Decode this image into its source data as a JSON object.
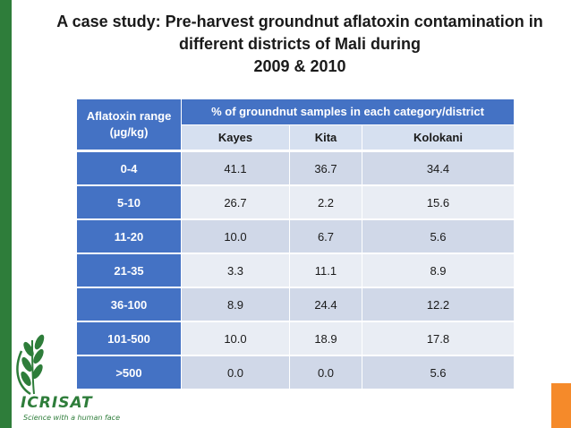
{
  "title": {
    "line1": "A case study: Pre-harvest groundnut aflatoxin contamination in",
    "line2": "different districts of Mali during",
    "line3": "2009 & 2010"
  },
  "table": {
    "corner_header": "Aflatoxin range (µg/kg)",
    "group_header": "% of groundnut samples in each category/district",
    "districts": [
      "Kayes",
      "Kita",
      "Kolokani"
    ],
    "rows": [
      {
        "range": "0-4",
        "values": [
          "41.1",
          "36.7",
          "34.4"
        ]
      },
      {
        "range": "5-10",
        "values": [
          "26.7",
          "2.2",
          "15.6"
        ]
      },
      {
        "range": "11-20",
        "values": [
          "10.0",
          "6.7",
          "5.6"
        ]
      },
      {
        "range": "21-35",
        "values": [
          "3.3",
          "11.1",
          "8.9"
        ]
      },
      {
        "range": "36-100",
        "values": [
          "8.9",
          "24.4",
          "12.2"
        ]
      },
      {
        "range": "101-500",
        "values": [
          "10.0",
          "18.9",
          "17.8"
        ]
      },
      {
        "range": ">500",
        "values": [
          "0.0",
          "0.0",
          "5.6"
        ]
      }
    ]
  },
  "logo": {
    "name": "ICRISAT",
    "tagline": "Science with a human face"
  },
  "colors": {
    "header_blue": "#4472c4",
    "row_dark": "#d0d8e8",
    "row_light": "#e9edf4",
    "brand_green": "#2e7d3a",
    "accent_orange": "#f58a2a"
  }
}
